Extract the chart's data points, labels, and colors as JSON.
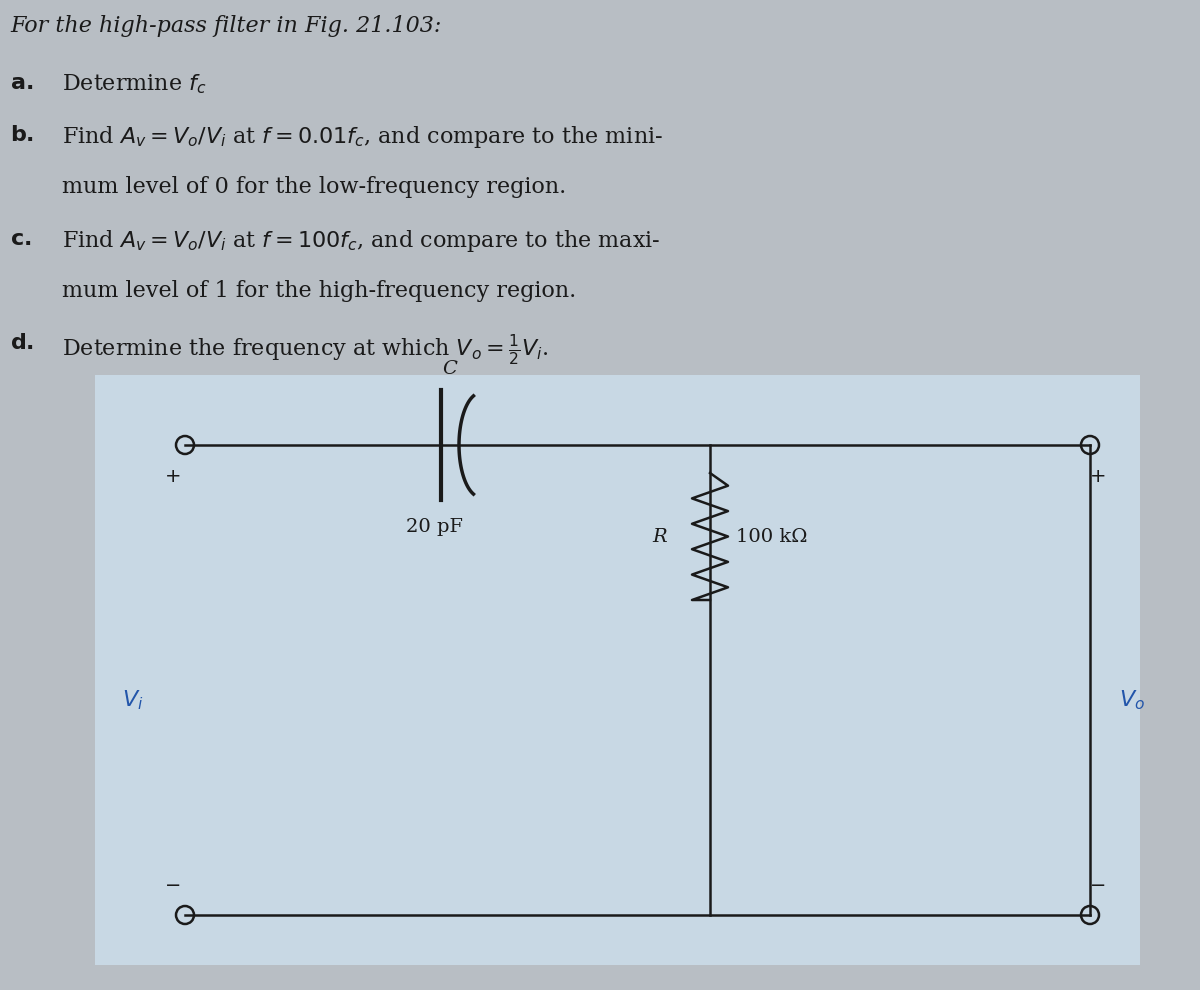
{
  "bg_color": "#b8bec4",
  "circuit_bg_color": "#c8d8e4",
  "text_color": "#1a1a1a",
  "blue_color": "#2255aa",
  "fig_width": 12.0,
  "fig_height": 9.9,
  "title": "For the high-pass filter in Fig. 21.103:",
  "line_a": "a.   Determine $f_c$",
  "line_b1": "b.   Find $A_v = V_o/V_i$ at $f = 0.01f_c$, and compare to the mini-",
  "line_b2": "      mum level of 0 for the low-frequency region.",
  "line_c1": "c.   Find $A_v = V_o/V_i$ at $f = 100f_c$, and compare to the maxi-",
  "line_c2": "      mum level of 1 for the high-frequency region.",
  "line_d": "d.   Determine the frequency at which $V_o = \\frac{1}{2}V_i$."
}
